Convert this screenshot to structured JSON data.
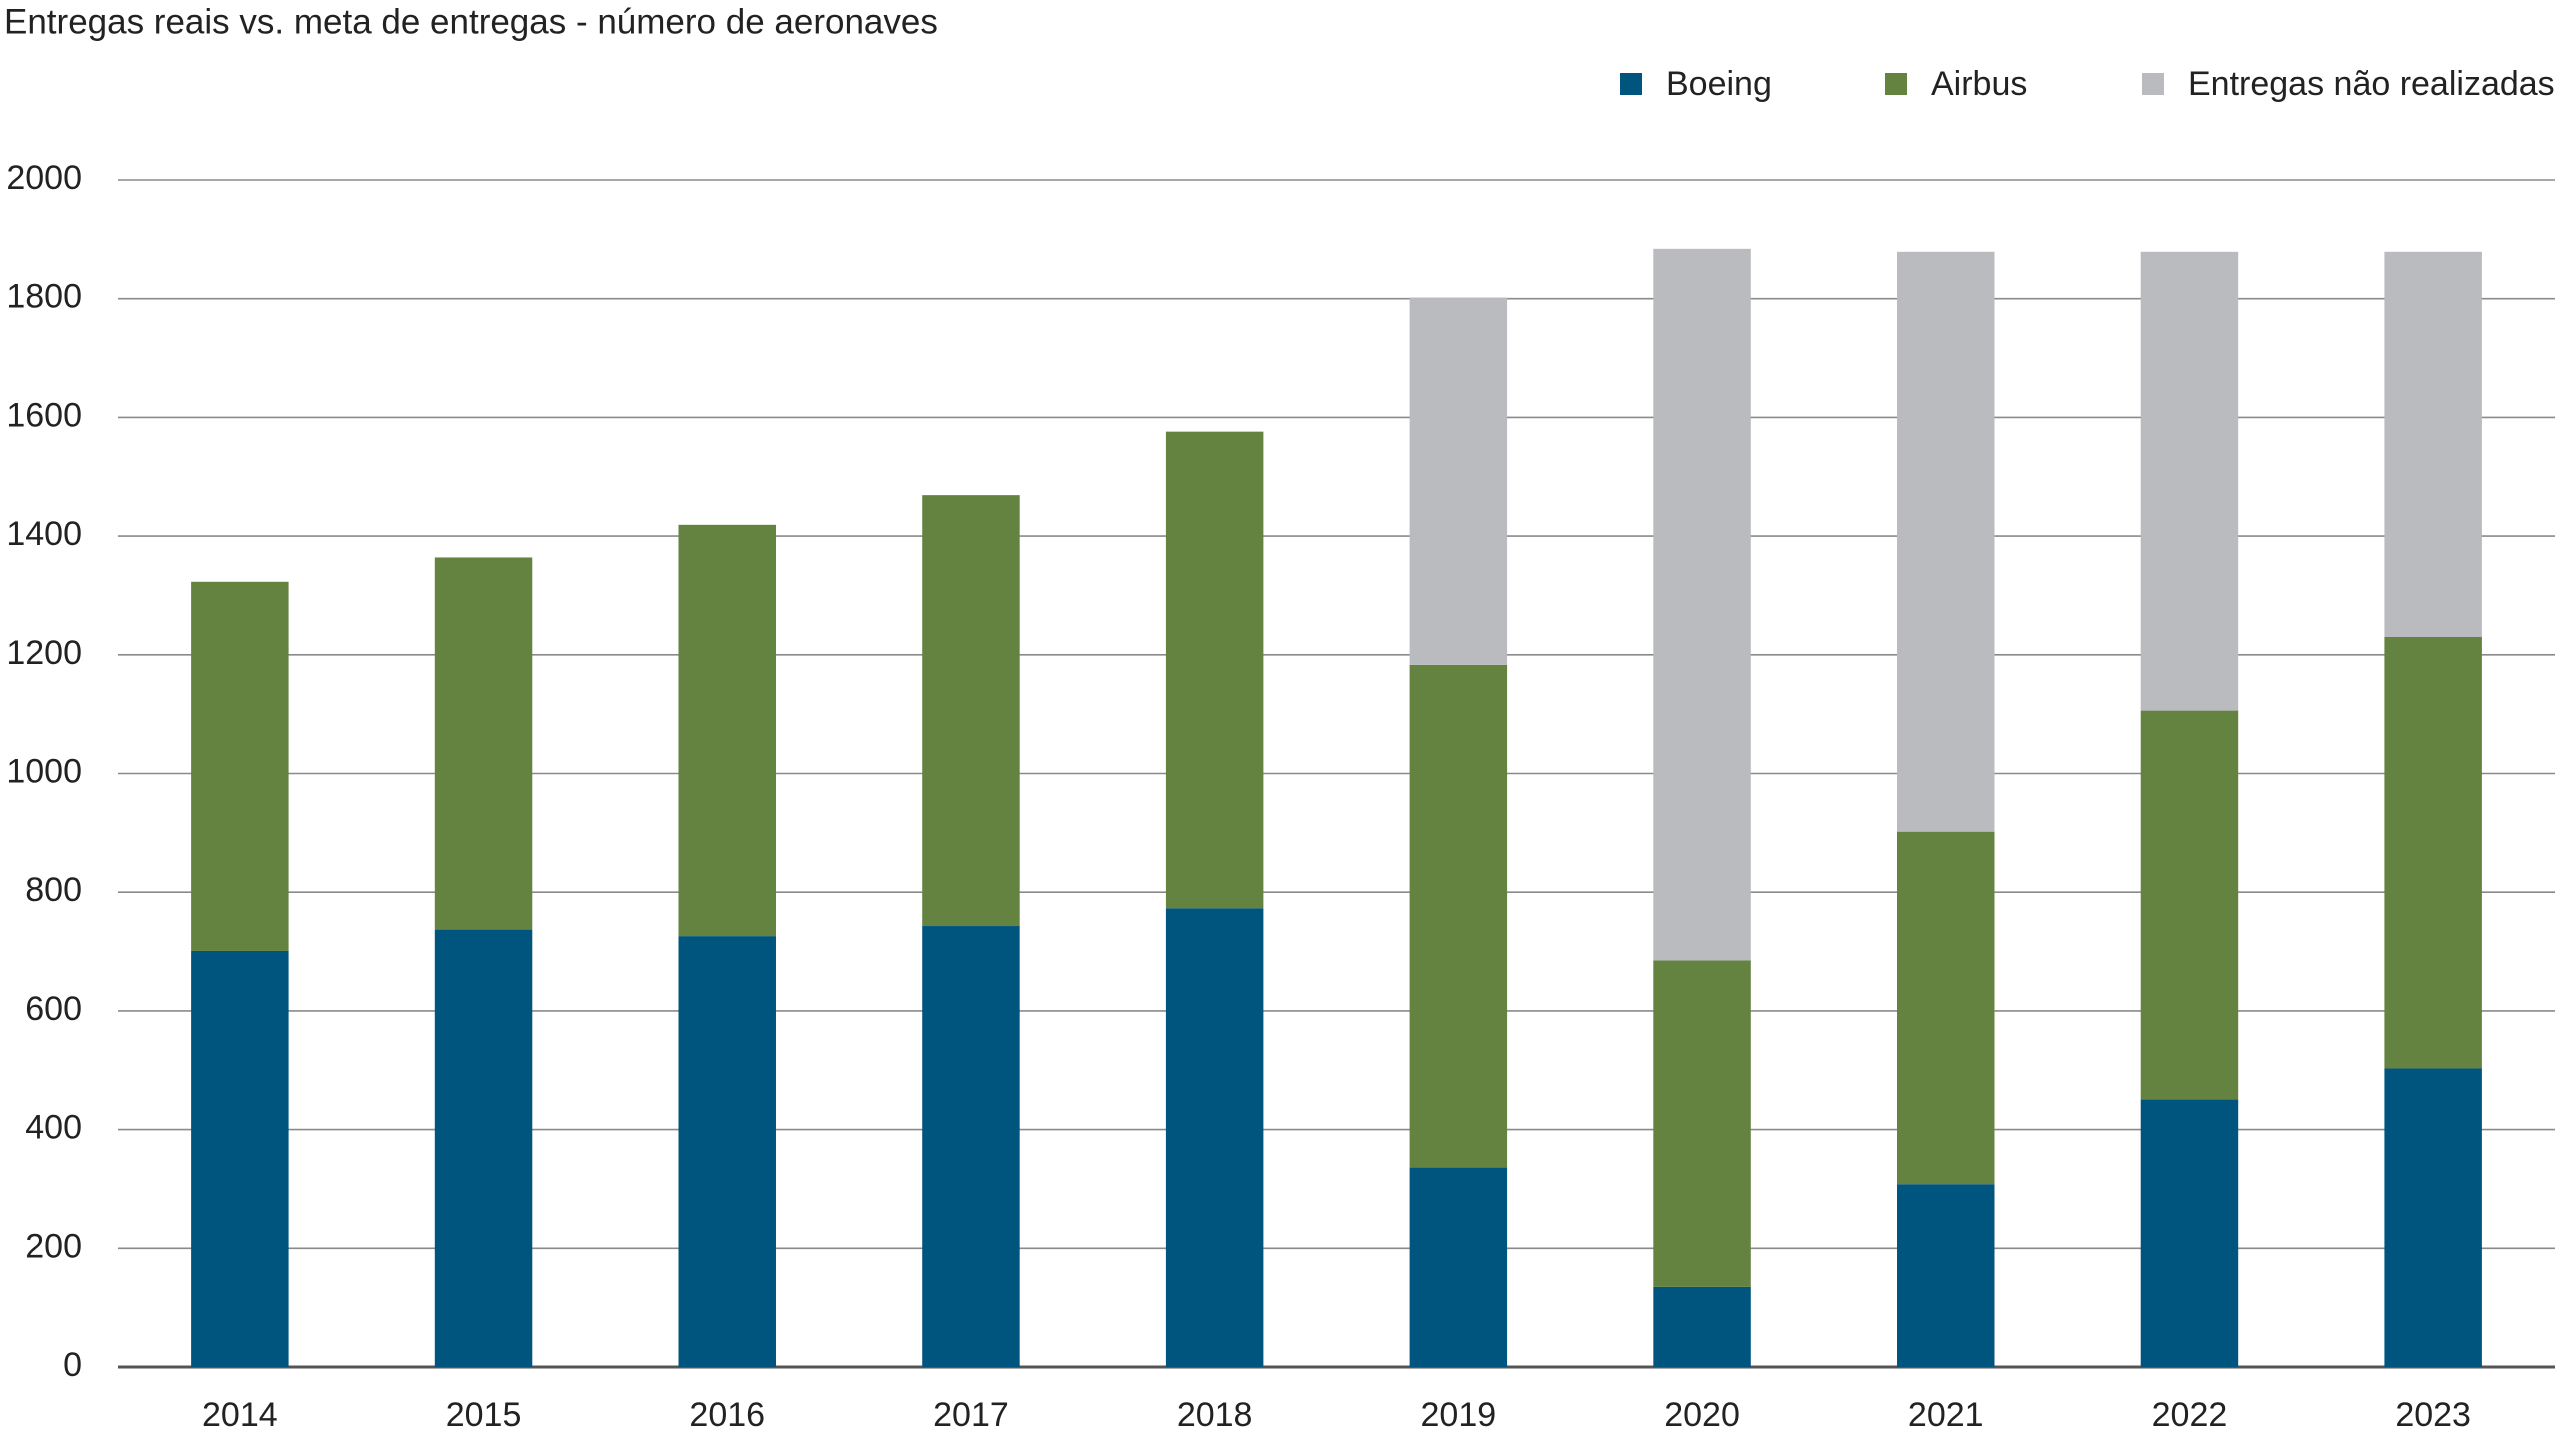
{
  "chart_data": {
    "type": "stacked_bar",
    "title": "Entregas reais vs. meta de entregas - número de aeronaves",
    "categories": [
      "2014",
      "2015",
      "2016",
      "2017",
      "2018",
      "2019",
      "2020",
      "2021",
      "2022",
      "2023"
    ],
    "series": [
      {
        "name": "Boeing",
        "color": "#00557f",
        "values": [
          701,
          737,
          726,
          743,
          773,
          336,
          135,
          308,
          451,
          503
        ]
      },
      {
        "name": "Airbus",
        "color": "#648240",
        "values": [
          622,
          627,
          693,
          726,
          803,
          847,
          550,
          594,
          655,
          727
        ]
      },
      {
        "name": "Entregas não realizadas",
        "color": "#b9bbbe",
        "values": [
          0,
          0,
          0,
          0,
          0,
          619,
          1199,
          977,
          773,
          649
        ]
      }
    ],
    "ylim": [
      0,
      2000
    ],
    "yticks": [
      0,
      200,
      400,
      600,
      800,
      1000,
      1200,
      1400,
      1600,
      1800,
      2000
    ],
    "grid": true,
    "legend": "upper right"
  }
}
